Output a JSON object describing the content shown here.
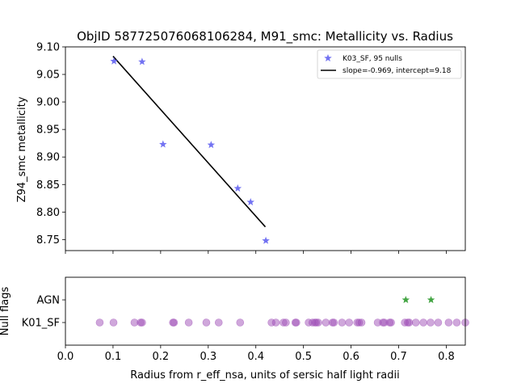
{
  "chart_data": [
    {
      "type": "scatter",
      "title": "ObjID 587725076068106284, M91_smc: Metallicity vs. Radius",
      "xlabel": "",
      "ylabel": "Z94_smc metallicity",
      "xlim": [
        0.0,
        0.84
      ],
      "ylim": [
        8.73,
        9.1
      ],
      "y_ticks": [
        "9.10",
        "9.05",
        "9.00",
        "8.95",
        "8.90",
        "8.85",
        "8.80",
        "8.75"
      ],
      "grid": false,
      "legend_placement": "top-right",
      "series": [
        {
          "name": "K03_SF, 95 nulls",
          "marker": "star",
          "color": "#5a5af0",
          "points": [
            {
              "x": 0.102,
              "y": 9.074
            },
            {
              "x": 0.161,
              "y": 9.073
            },
            {
              "x": 0.205,
              "y": 8.923
            },
            {
              "x": 0.306,
              "y": 8.922
            },
            {
              "x": 0.362,
              "y": 8.843
            },
            {
              "x": 0.389,
              "y": 8.818
            },
            {
              "x": 0.421,
              "y": 8.748
            }
          ]
        },
        {
          "name": "slope=-0.969, intercept=9.18",
          "type": "line",
          "color": "#000000",
          "points": [
            {
              "x": 0.1,
              "y": 9.083
            },
            {
              "x": 0.42,
              "y": 8.773
            }
          ]
        }
      ]
    },
    {
      "type": "scatter",
      "title": "",
      "xlabel": "Radius from r_eff_nsa, units of sersic half light radii",
      "ylabel": "Null flags",
      "xlim": [
        0.0,
        0.84
      ],
      "x_ticks": [
        "0.0",
        "0.1",
        "0.2",
        "0.3",
        "0.4",
        "0.5",
        "0.6",
        "0.7",
        "0.8"
      ],
      "categories": [
        "AGN",
        "K01_SF"
      ],
      "series": [
        {
          "category": "AGN",
          "marker": "star",
          "color": "#2e9a2e",
          "x": [
            0.715,
            0.768
          ]
        },
        {
          "category": "K01_SF",
          "marker": "circle",
          "color": "#a050b8",
          "x": [
            0.072,
            0.101,
            0.145,
            0.158,
            0.161,
            0.226,
            0.228,
            0.259,
            0.296,
            0.322,
            0.367,
            0.433,
            0.442,
            0.458,
            0.463,
            0.483,
            0.485,
            0.511,
            0.519,
            0.524,
            0.527,
            0.531,
            0.547,
            0.561,
            0.564,
            0.581,
            0.596,
            0.613,
            0.617,
            0.622,
            0.656,
            0.667,
            0.67,
            0.681,
            0.684,
            0.713,
            0.719,
            0.722,
            0.736,
            0.752,
            0.767,
            0.783,
            0.805,
            0.822,
            0.84
          ]
        }
      ]
    }
  ]
}
